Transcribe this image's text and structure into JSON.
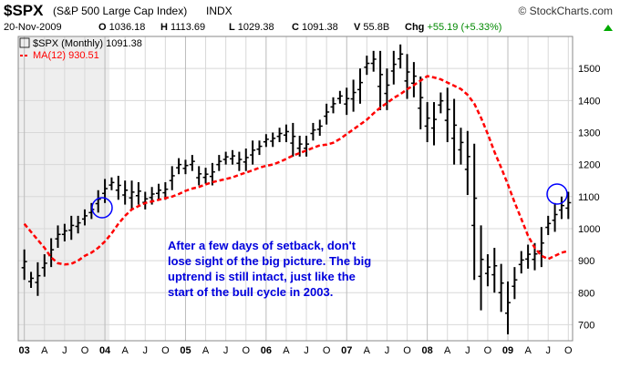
{
  "header": {
    "ticker": "$SPX",
    "name": "(S&P 500 Large Cap Index)",
    "exchange": "INDX",
    "brand": "© StockCharts.com",
    "date": "20-Nov-2009",
    "open_label": "O",
    "open": "1036.18",
    "high_label": "H",
    "high": "1113.69",
    "low_label": "L",
    "low": "1029.38",
    "close_label": "C",
    "close": "1091.38",
    "volume_label": "V",
    "volume": "55.8B",
    "change_label": "Chg",
    "change": "+55.19 (+5.33%)"
  },
  "legend": {
    "price": "$SPX (Monthly) 1091.38",
    "ma": "MA(12) 930.51"
  },
  "annotation": [
    "After a few days of setback, don't",
    "lose sight of the big picture. The big",
    "uptrend is still intact, just like the",
    "start of the bull cycle in 2003."
  ],
  "colors": {
    "bars": "#000000",
    "ma": "#ff0000",
    "annotation": "#0000dd",
    "circles": "#0000ff",
    "grid": "#d8d8d8",
    "shade": "#eeeeee"
  },
  "chart_data": {
    "type": "ohlc",
    "ylim": [
      650,
      1600
    ],
    "y_ticks": [
      700,
      800,
      900,
      1000,
      1100,
      1200,
      1300,
      1400,
      1500
    ],
    "x_labels": [
      "03",
      "A",
      "J",
      "O",
      "04",
      "A",
      "J",
      "O",
      "05",
      "A",
      "J",
      "O",
      "06",
      "A",
      "J",
      "O",
      "07",
      "A",
      "J",
      "O",
      "08",
      "A",
      "J",
      "O",
      "09",
      "A",
      "J",
      "O"
    ],
    "grid": true,
    "bars": [
      {
        "high": 935,
        "low": 840
      },
      {
        "high": 865,
        "low": 815
      },
      {
        "high": 895,
        "low": 790
      },
      {
        "high": 920,
        "low": 850
      },
      {
        "high": 970,
        "low": 880
      },
      {
        "high": 1010,
        "low": 940
      },
      {
        "high": 1015,
        "low": 960
      },
      {
        "high": 1040,
        "low": 965
      },
      {
        "high": 1040,
        "low": 985
      },
      {
        "high": 1060,
        "low": 1010
      },
      {
        "high": 1080,
        "low": 1030
      },
      {
        "high": 1120,
        "low": 1050
      },
      {
        "high": 1155,
        "low": 1080
      },
      {
        "high": 1160,
        "low": 1120
      },
      {
        "high": 1165,
        "low": 1090
      },
      {
        "high": 1150,
        "low": 1075
      },
      {
        "high": 1150,
        "low": 1060
      },
      {
        "high": 1145,
        "low": 1075
      },
      {
        "high": 1115,
        "low": 1060
      },
      {
        "high": 1130,
        "low": 1075
      },
      {
        "high": 1140,
        "low": 1090
      },
      {
        "high": 1145,
        "low": 1090
      },
      {
        "high": 1195,
        "low": 1120
      },
      {
        "high": 1220,
        "low": 1170
      },
      {
        "high": 1215,
        "low": 1170
      },
      {
        "high": 1230,
        "low": 1180
      },
      {
        "high": 1195,
        "low": 1135
      },
      {
        "high": 1190,
        "low": 1140
      },
      {
        "high": 1205,
        "low": 1135
      },
      {
        "high": 1230,
        "low": 1180
      },
      {
        "high": 1240,
        "low": 1200
      },
      {
        "high": 1245,
        "low": 1200
      },
      {
        "high": 1240,
        "low": 1180
      },
      {
        "high": 1250,
        "low": 1180
      },
      {
        "high": 1275,
        "low": 1200
      },
      {
        "high": 1275,
        "low": 1230
      },
      {
        "high": 1295,
        "low": 1255
      },
      {
        "high": 1300,
        "low": 1255
      },
      {
        "high": 1315,
        "low": 1270
      },
      {
        "high": 1325,
        "low": 1270
      },
      {
        "high": 1330,
        "low": 1225
      },
      {
        "high": 1290,
        "low": 1225
      },
      {
        "high": 1290,
        "low": 1225
      },
      {
        "high": 1330,
        "low": 1275
      },
      {
        "high": 1340,
        "low": 1290
      },
      {
        "high": 1390,
        "low": 1325
      },
      {
        "high": 1410,
        "low": 1360
      },
      {
        "high": 1430,
        "low": 1390
      },
      {
        "high": 1440,
        "low": 1355
      },
      {
        "high": 1465,
        "low": 1365
      },
      {
        "high": 1500,
        "low": 1390
      },
      {
        "high": 1540,
        "low": 1480
      },
      {
        "high": 1555,
        "low": 1490
      },
      {
        "high": 1555,
        "low": 1370
      },
      {
        "high": 1500,
        "low": 1370
      },
      {
        "high": 1555,
        "low": 1450
      },
      {
        "high": 1575,
        "low": 1500
      },
      {
        "high": 1545,
        "low": 1405
      },
      {
        "high": 1520,
        "low": 1410
      },
      {
        "high": 1475,
        "low": 1310
      },
      {
        "high": 1395,
        "low": 1270
      },
      {
        "high": 1395,
        "low": 1260
      },
      {
        "high": 1425,
        "low": 1360
      },
      {
        "high": 1440,
        "low": 1270
      },
      {
        "high": 1405,
        "low": 1200
      },
      {
        "high": 1315,
        "low": 1200
      },
      {
        "high": 1305,
        "low": 1105
      },
      {
        "high": 1265,
        "low": 840
      },
      {
        "high": 1010,
        "low": 745
      },
      {
        "high": 920,
        "low": 820
      },
      {
        "high": 940,
        "low": 800
      },
      {
        "high": 890,
        "low": 740
      },
      {
        "high": 835,
        "low": 670
      },
      {
        "high": 880,
        "low": 780
      },
      {
        "high": 930,
        "low": 860
      },
      {
        "high": 950,
        "low": 875
      },
      {
        "high": 955,
        "low": 870
      },
      {
        "high": 1005,
        "low": 880
      },
      {
        "high": 1040,
        "low": 980
      },
      {
        "high": 1080,
        "low": 990
      },
      {
        "high": 1100,
        "low": 1030
      },
      {
        "high": 1115,
        "low": 1030
      }
    ],
    "ma_series": {
      "name": "MA(12)",
      "values": [
        1015,
        990,
        965,
        940,
        910,
        892,
        888,
        890,
        900,
        915,
        925,
        940,
        960,
        985,
        1015,
        1040,
        1060,
        1070,
        1080,
        1085,
        1090,
        1095,
        1100,
        1108,
        1118,
        1125,
        1130,
        1138,
        1145,
        1150,
        1155,
        1160,
        1168,
        1175,
        1182,
        1190,
        1196,
        1200,
        1208,
        1218,
        1228,
        1236,
        1244,
        1252,
        1260,
        1262,
        1268,
        1280,
        1295,
        1310,
        1325,
        1340,
        1360,
        1378,
        1392,
        1408,
        1420,
        1435,
        1448,
        1462,
        1476,
        1472,
        1466,
        1456,
        1446,
        1436,
        1418,
        1390,
        1346,
        1296,
        1240,
        1190,
        1138,
        1082,
        1030,
        978,
        940,
        915,
        905,
        915,
        925,
        930.51
      ]
    }
  }
}
